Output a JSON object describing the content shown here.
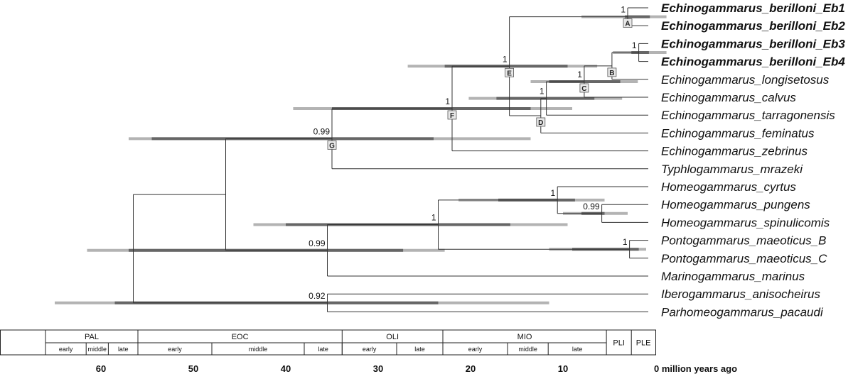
{
  "taxa": [
    {
      "label": "Echinogammarus_berilloni_Eb1",
      "color": "#F5821F",
      "bold": true
    },
    {
      "label": "Echinogammarus_berilloni_Eb2",
      "color": "#6A2C91",
      "bold": true
    },
    {
      "label": "Echinogammarus_berilloni_Eb3",
      "color": "#2E9E47",
      "bold": true
    },
    {
      "label": "Echinogammarus_berilloni_Eb4",
      "color": "#E0559A",
      "bold": true
    },
    {
      "label": "Echinogammarus_longisetosus",
      "color": "#111111",
      "bold": false
    },
    {
      "label": "Echinogammarus_calvus",
      "color": "#111111",
      "bold": false
    },
    {
      "label": "Echinogammarus_tarragonensis",
      "color": "#111111",
      "bold": false
    },
    {
      "label": "Echinogammarus_feminatus",
      "color": "#111111",
      "bold": false
    },
    {
      "label": "Echinogammarus_zebrinus",
      "color": "#111111",
      "bold": false
    },
    {
      "label": "Typhlogammarus_mrazeki",
      "color": "#111111",
      "bold": false
    },
    {
      "label": "Homeogammarus_cyrtus",
      "color": "#111111",
      "bold": false
    },
    {
      "label": "Homeogammarus_pungens",
      "color": "#111111",
      "bold": false
    },
    {
      "label": "Homeogammarus_spinulicomis",
      "color": "#111111",
      "bold": false
    },
    {
      "label": "Pontogammarus_maeoticus_B",
      "color": "#3F5766",
      "bold": false
    },
    {
      "label": "Pontogammarus_maeoticus_C",
      "color": "#3F5766",
      "bold": false
    },
    {
      "label": "Marinogammarus_marinus",
      "color": "#111111",
      "bold": false
    },
    {
      "label": "Iberogammarus_anisocheirus",
      "color": "#111111",
      "bold": false
    },
    {
      "label": "Parhomeogammarus_pacaudi",
      "color": "#111111",
      "bold": false
    }
  ],
  "nodes": [
    {
      "id": "Eb12",
      "age": 3.0,
      "children": [
        "t0",
        "t1"
      ],
      "support": "1",
      "label": "A",
      "bar": [
        8,
        3.3,
        0.6,
        -1.2
      ]
    },
    {
      "id": "Eb34",
      "age": 1.8,
      "children": [
        "t2",
        "t3"
      ],
      "support": "1",
      "label": "",
      "bar": [
        4.6,
        2.6,
        0.7,
        -1.2
      ]
    },
    {
      "id": "NB",
      "age": 4.7,
      "children": [
        "Eb34",
        "t4"
      ],
      "support": "",
      "label": "B",
      "bar": null
    },
    {
      "id": "NC",
      "age": 7.7,
      "children": [
        "NB",
        "t5"
      ],
      "support": "1",
      "label": "C",
      "bar": [
        13.5,
        11.5,
        3.8,
        1.9
      ]
    },
    {
      "id": "ND",
      "age": 11.8,
      "children": [
        "NC",
        "t6"
      ],
      "support": "1",
      "label": "",
      "bar": [
        20.2,
        17.2,
        6.6,
        3.6
      ]
    },
    {
      "id": "ND2",
      "age": 12.4,
      "children": [
        "ND",
        "t7"
      ],
      "support": "",
      "label": "D",
      "bar": null
    },
    {
      "id": "NE",
      "age": 15.8,
      "children": [
        "Eb12",
        "ND2"
      ],
      "support": "1",
      "label": "E",
      "bar": [
        26.8,
        22.8,
        9.5,
        6.3
      ]
    },
    {
      "id": "NF",
      "age": 22.0,
      "children": [
        "NE",
        "t8"
      ],
      "support": "1",
      "label": "F",
      "bar": [
        39.2,
        35.0,
        13.5,
        9.0
      ]
    },
    {
      "id": "NG",
      "age": 35.0,
      "children": [
        "NF",
        "t9"
      ],
      "support": "0.99",
      "label": "G",
      "bar": [
        57.0,
        54.5,
        24.0,
        13.5
      ]
    },
    {
      "id": "NH1",
      "age": 5.8,
      "children": [
        "t11",
        "t12"
      ],
      "support": "0.99",
      "label": "",
      "bar": [
        10.0,
        8.0,
        5.5,
        3.0
      ]
    },
    {
      "id": "NH",
      "age": 10.6,
      "children": [
        "t10",
        "NH1"
      ],
      "support": "1",
      "label": "",
      "bar": [
        21.3,
        17.0,
        8.7,
        5.5
      ]
    },
    {
      "id": "NP",
      "age": 2.8,
      "children": [
        "t13",
        "t14"
      ],
      "support": "1",
      "label": "",
      "bar": [
        11.5,
        9.0,
        1.8,
        1.0
      ]
    },
    {
      "id": "NHP",
      "age": 23.5,
      "children": [
        "NH",
        "NP"
      ],
      "support": "1",
      "label": "",
      "bar": [
        43.5,
        40.0,
        15.7,
        9.5
      ]
    },
    {
      "id": "NM",
      "age": 35.5,
      "children": [
        "NHP",
        "t15"
      ],
      "support": "0.99",
      "label": "",
      "bar": [
        61.5,
        57.0,
        27.3,
        22.8
      ]
    },
    {
      "id": "NG2",
      "age": 46.5,
      "children": [
        "NG",
        "NM"
      ],
      "support": "",
      "label": "",
      "bar": null
    },
    {
      "id": "NI",
      "age": 35.5,
      "children": [
        "t16",
        "t17"
      ],
      "support": "0.92",
      "label": "",
      "bar": [
        65.0,
        58.5,
        23.5,
        11.5
      ]
    },
    {
      "id": "ROOT",
      "age": 56.5,
      "children": [
        "NG2",
        "NI"
      ],
      "support": "",
      "label": "",
      "bar": null
    }
  ],
  "epochs": [
    {
      "label": "PAL",
      "start": 66,
      "end": 56
    },
    {
      "label": "EOC",
      "start": 56,
      "end": 33.9
    },
    {
      "label": "OLI",
      "start": 33.9,
      "end": 23
    },
    {
      "label": "MIO",
      "start": 23,
      "end": 5.3
    },
    {
      "label": "PLI",
      "start": 5.3,
      "end": 2.6
    },
    {
      "label": "PLE",
      "start": 2.6,
      "end": 0
    }
  ],
  "subepochs": [
    {
      "label": "early",
      "start": 66,
      "end": 61.6
    },
    {
      "label": "middle",
      "start": 61.6,
      "end": 59.2
    },
    {
      "label": "late",
      "start": 59.2,
      "end": 56
    },
    {
      "label": "early",
      "start": 56,
      "end": 48
    },
    {
      "label": "middle",
      "start": 48,
      "end": 38
    },
    {
      "label": "late",
      "start": 38,
      "end": 33.9
    },
    {
      "label": "early",
      "start": 33.9,
      "end": 28
    },
    {
      "label": "late",
      "start": 28,
      "end": 23
    },
    {
      "label": "early",
      "start": 23,
      "end": 16
    },
    {
      "label": "middle",
      "start": 16,
      "end": 11.6
    },
    {
      "label": "late",
      "start": 11.6,
      "end": 5.3
    }
  ],
  "axis_ticks": [
    {
      "value": 60,
      "label": "60"
    },
    {
      "value": 50,
      "label": "50"
    },
    {
      "value": 40,
      "label": "40"
    },
    {
      "value": 30,
      "label": "30"
    },
    {
      "value": 20,
      "label": "20"
    },
    {
      "value": 10,
      "label": "10"
    },
    {
      "value": 0,
      "label": "0 million years ago"
    }
  ],
  "colors": {
    "branch": "#333333",
    "bar_inner": "#666666",
    "bar_outer": "#b3b3b3",
    "label_box": "#e8e8e8"
  }
}
